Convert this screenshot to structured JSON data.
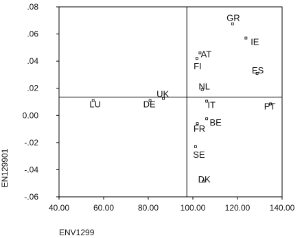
{
  "chart_data": {
    "type": "scatter",
    "xlabel": "ENV1299",
    "ylabel": "EN129901",
    "xlim": [
      40,
      140
    ],
    "ylim": [
      -0.06,
      0.08
    ],
    "xticks": [
      40,
      60,
      80,
      100,
      120,
      140
    ],
    "xtick_labels": [
      "40.00",
      "60.00",
      "80.00",
      "100.00",
      "120.00",
      "140.00"
    ],
    "yticks": [
      0.08,
      0.06,
      0.04,
      0.02,
      0.0,
      -0.02,
      -0.04,
      -0.06
    ],
    "ytick_labels": [
      ".08",
      ".06",
      ".04",
      ".02",
      "0.00",
      "-.02",
      "-.04",
      "-.06"
    ],
    "reference_lines": {
      "x": 97.3,
      "y": 0.0135
    },
    "grid": false,
    "points": [
      {
        "label": "GR",
        "x": 117.8,
        "y": 0.0675
      },
      {
        "label": "IE",
        "x": 123.8,
        "y": 0.057
      },
      {
        "label": "AT",
        "x": 103.2,
        "y": 0.046
      },
      {
        "label": "FI",
        "x": 101.8,
        "y": 0.042
      },
      {
        "label": "ES",
        "x": 128.8,
        "y": 0.031
      },
      {
        "label": "NL",
        "x": 104.2,
        "y": 0.019
      },
      {
        "label": "UK",
        "x": 86.8,
        "y": 0.0125
      },
      {
        "label": "LU",
        "x": 55.3,
        "y": 0.011
      },
      {
        "label": "DE",
        "x": 80.8,
        "y": 0.011
      },
      {
        "label": "IT",
        "x": 106.2,
        "y": 0.0105
      },
      {
        "label": "PT",
        "x": 134.8,
        "y": 0.0085
      },
      {
        "label": "BE",
        "x": 106.2,
        "y": -0.0025
      },
      {
        "label": "FR",
        "x": 102.0,
        "y": -0.006
      },
      {
        "label": "SE",
        "x": 101.2,
        "y": -0.023
      },
      {
        "label": "DK",
        "x": 104.8,
        "y": -0.0485
      }
    ]
  }
}
